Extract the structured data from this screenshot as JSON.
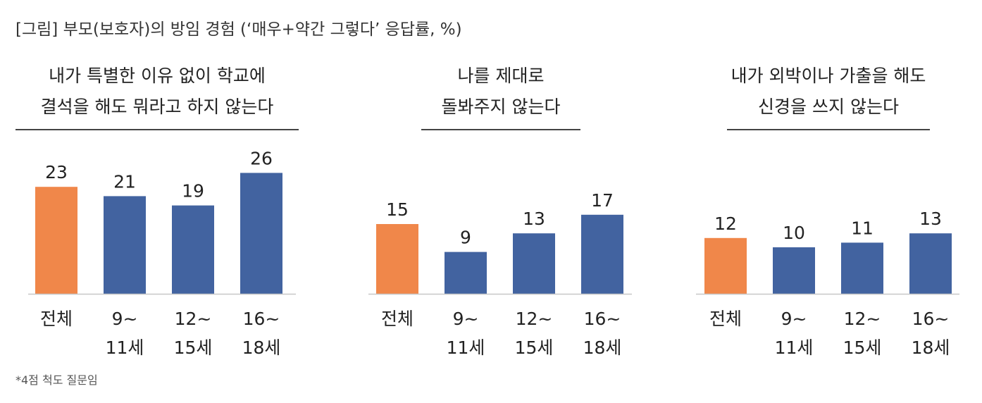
{
  "title": "[그림] 부모(보호자)의 방임 경험 (‘매우+약간 그렇다’ 응답률, %)",
  "footnote": "*4점 척도 질문임",
  "colors": {
    "overall": "#F0874A",
    "age": "#4263A0",
    "axis": "#C8C8C8",
    "rule": "#444444"
  },
  "chart_data": [
    {
      "type": "bar",
      "title": [
        "내가 특별한 이유 없이 학교에",
        "결석을 해도 뭐라고 하지 않는다"
      ],
      "categories": [
        [
          "전체"
        ],
        [
          "9~",
          "11세"
        ],
        [
          "12~",
          "15세"
        ],
        [
          "16~",
          "18세"
        ]
      ],
      "values": [
        23,
        21,
        19,
        26
      ],
      "colors": [
        "overall",
        "age",
        "age",
        "age"
      ],
      "ylim": [
        0,
        30
      ]
    },
    {
      "type": "bar",
      "title": [
        "나를 제대로",
        "돌봐주지 않는다"
      ],
      "categories": [
        [
          "전체"
        ],
        [
          "9~",
          "11세"
        ],
        [
          "12~",
          "15세"
        ],
        [
          "16~",
          "18세"
        ]
      ],
      "values": [
        15,
        9,
        13,
        17
      ],
      "colors": [
        "overall",
        "age",
        "age",
        "age"
      ],
      "ylim": [
        0,
        30
      ]
    },
    {
      "type": "bar",
      "title": [
        "내가 외박이나 가출을 해도",
        "신경을 쓰지 않는다"
      ],
      "categories": [
        [
          "전체"
        ],
        [
          "9~",
          "11세"
        ],
        [
          "12~",
          "15세"
        ],
        [
          "16~",
          "18세"
        ]
      ],
      "values": [
        12,
        10,
        11,
        13
      ],
      "colors": [
        "overall",
        "age",
        "age",
        "age"
      ],
      "ylim": [
        0,
        30
      ]
    }
  ]
}
